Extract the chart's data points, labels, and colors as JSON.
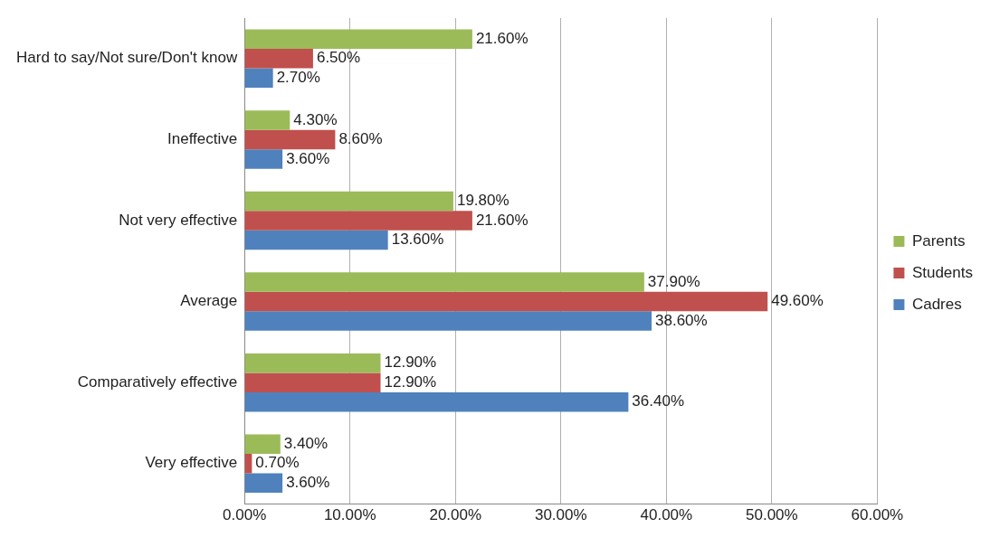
{
  "chart_data": {
    "type": "bar",
    "orientation": "horizontal",
    "categories": [
      "Hard to say/Not sure/Don't know",
      "Ineffective",
      "Not very effective",
      "Average",
      "Comparatively effective",
      "Very effective"
    ],
    "series": [
      {
        "name": "Parents",
        "color": "#9bbb59",
        "values": [
          21.6,
          4.3,
          19.8,
          37.9,
          12.9,
          3.4
        ],
        "value_labels": [
          "21.60%",
          "4.30%",
          "19.80%",
          "37.90%",
          "12.90%",
          "3.40%"
        ]
      },
      {
        "name": "Students",
        "color": "#c0504d",
        "values": [
          6.5,
          8.6,
          21.6,
          49.6,
          12.9,
          0.7
        ],
        "value_labels": [
          "6.50%",
          "8.60%",
          "21.60%",
          "49.60%",
          "12.90%",
          "0.70%"
        ]
      },
      {
        "name": "Cadres",
        "color": "#4f81bd",
        "values": [
          2.7,
          3.6,
          13.6,
          38.6,
          36.4,
          3.6
        ],
        "value_labels": [
          "2.70%",
          "3.60%",
          "13.60%",
          "38.60%",
          "36.40%",
          "3.60%"
        ]
      }
    ],
    "xlim": [
      0,
      60
    ],
    "xticks": [
      {
        "value": 0,
        "label": "0.00%"
      },
      {
        "value": 10,
        "label": "10.00%"
      },
      {
        "value": 20,
        "label": "20.00%"
      },
      {
        "value": 30,
        "label": "30.00%"
      },
      {
        "value": 40,
        "label": "40.00%"
      },
      {
        "value": 50,
        "label": "50.00%"
      },
      {
        "value": 60,
        "label": "60.00%"
      }
    ],
    "grid": "x",
    "legend": "right"
  }
}
